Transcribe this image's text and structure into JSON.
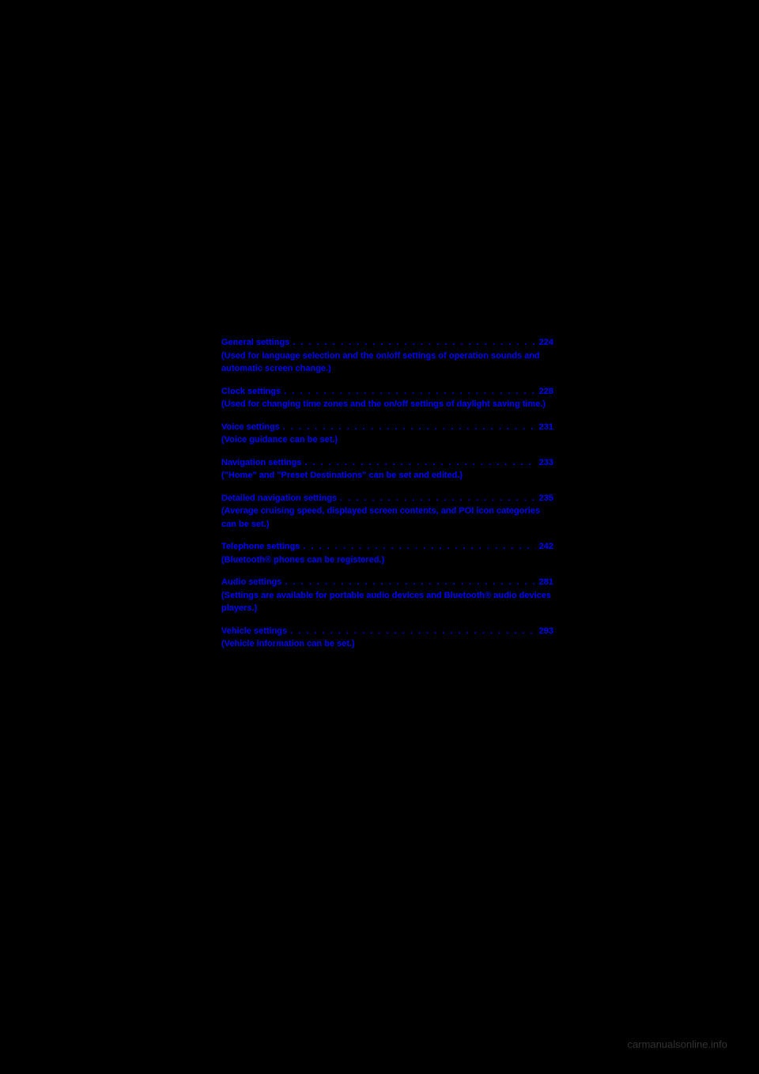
{
  "entries": [
    {
      "title": "General settings",
      "page": "224",
      "desc": "(Used for language selection and the on/off settings of operation sounds and automatic screen change.)"
    },
    {
      "title": "Clock settings",
      "page": "228",
      "desc": "(Used for changing time zones and the on/off settings of daylight saving time.)"
    },
    {
      "title": "Voice settings",
      "page": "231",
      "desc": "(Voice guidance can be set.)"
    },
    {
      "title": "Navigation settings",
      "page": "233",
      "desc": "(\"Home\" and \"Preset Destinations\" can be set and edited.)"
    },
    {
      "title": "Detailed navigation settings",
      "page": "235",
      "desc": "(Average cruising speed, displayed screen contents, and POI icon categories can be set.)"
    },
    {
      "title": "Telephone settings",
      "page": "242",
      "desc": "(Bluetooth® phones can be registered.)"
    },
    {
      "title": "Audio settings",
      "page": "281",
      "desc": "(Settings are available for portable audio devices and Bluetooth® audio devices players.)"
    },
    {
      "title": "Vehicle settings",
      "page": "293",
      "desc": "(Vehicle information can be set.)"
    }
  ],
  "footer_text": "carmanualsonline.info",
  "dots_fill": ". . . . . . . . . . . . . . . . . . . . . . . . . . . . . . . . . . . . . . . . . . . . . . . . . . ."
}
